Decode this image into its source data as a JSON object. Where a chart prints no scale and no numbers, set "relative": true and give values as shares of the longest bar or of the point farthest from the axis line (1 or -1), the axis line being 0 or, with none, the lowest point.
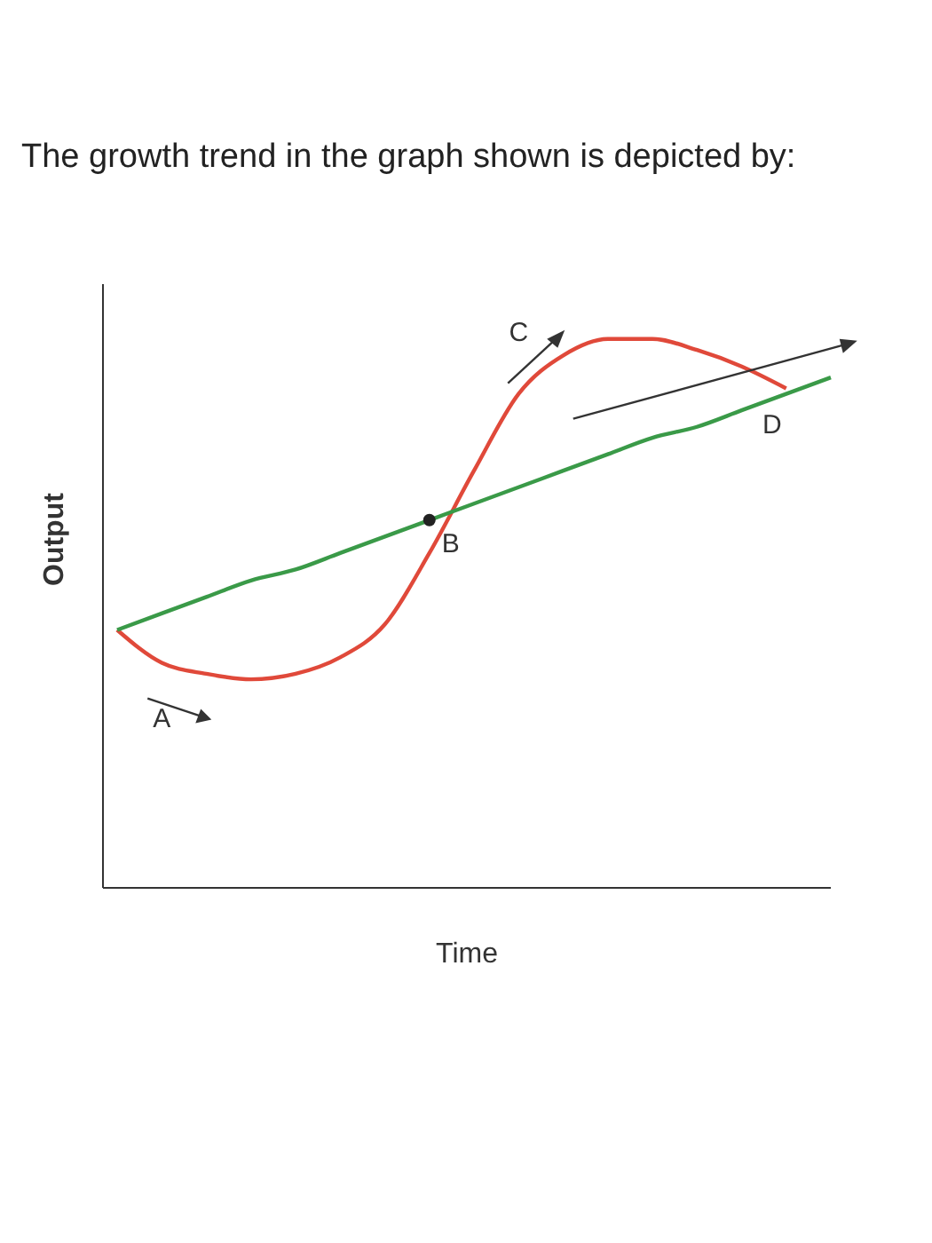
{
  "chart_data": {
    "type": "line",
    "title": "The growth trend in the graph shown is depicted by:",
    "xlabel": "Time",
    "ylabel": "Output",
    "relative": true,
    "categories": [
      null,
      null,
      null,
      null,
      null,
      null,
      null,
      null,
      null,
      null,
      null,
      null,
      null,
      null,
      null,
      null,
      null
    ],
    "series": [
      {
        "color": "#e0493a",
        "values": [
          0.47,
          0.41,
          0.39,
          0.38,
          0.39,
          0.42,
          0.48,
          0.61,
          0.76,
          0.9,
          0.97,
          1,
          1,
          0.98,
          0.95,
          0.91,
          null
        ]
      },
      {
        "color": "#3a9a48",
        "values": [
          0.47,
          0.5,
          0.53,
          0.56,
          0.58,
          0.61,
          0.64,
          0.67,
          0.7,
          0.73,
          0.76,
          0.79,
          0.82,
          0.84,
          0.87,
          0.9,
          0.93
        ]
      }
    ],
    "annotations": [
      "A",
      "B",
      "C",
      "D"
    ]
  }
}
